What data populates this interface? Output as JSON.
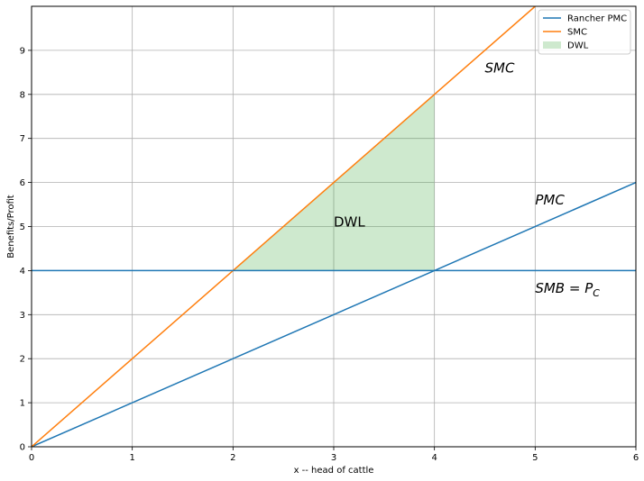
{
  "chart_data": {
    "type": "line",
    "xlabel": "x -- head of cattle",
    "ylabel": "Benefits/Profit",
    "xlim": [
      0,
      6
    ],
    "ylim": [
      0,
      10
    ],
    "xticks": [
      "0",
      "1",
      "2",
      "3",
      "4",
      "5",
      "6"
    ],
    "yticks": [
      "0",
      "1",
      "2",
      "3",
      "4",
      "5",
      "6",
      "7",
      "8",
      "9"
    ],
    "grid": true,
    "legend_position": "top-right",
    "series": [
      {
        "name": "Rancher PMC",
        "color": "#1f77b4",
        "x": [
          0,
          6
        ],
        "y": [
          0,
          6
        ]
      },
      {
        "name": "SMC",
        "color": "#ff7f0e",
        "x": [
          0,
          5
        ],
        "y": [
          0,
          10
        ]
      }
    ],
    "hline": {
      "y": 4,
      "color": "#1f77b4"
    },
    "area": {
      "name": "DWL",
      "color": "#2ca02c",
      "opacity": 0.23,
      "x": [
        2,
        4
      ],
      "y_top": [
        4,
        8
      ],
      "y_bottom": [
        4,
        4
      ]
    },
    "annotations": [
      {
        "text": "SMC",
        "italic": true,
        "x": 4.5,
        "y": 8.5
      },
      {
        "text": "PMC",
        "italic": true,
        "x": 5.0,
        "y": 5.5
      },
      {
        "text": "DWL",
        "italic": false,
        "x": 3.0,
        "y": 5.0
      },
      {
        "text": "SMB = ",
        "sub_main": "P",
        "sub": "C",
        "italic": true,
        "x": 5.0,
        "y": 3.5
      }
    ]
  }
}
